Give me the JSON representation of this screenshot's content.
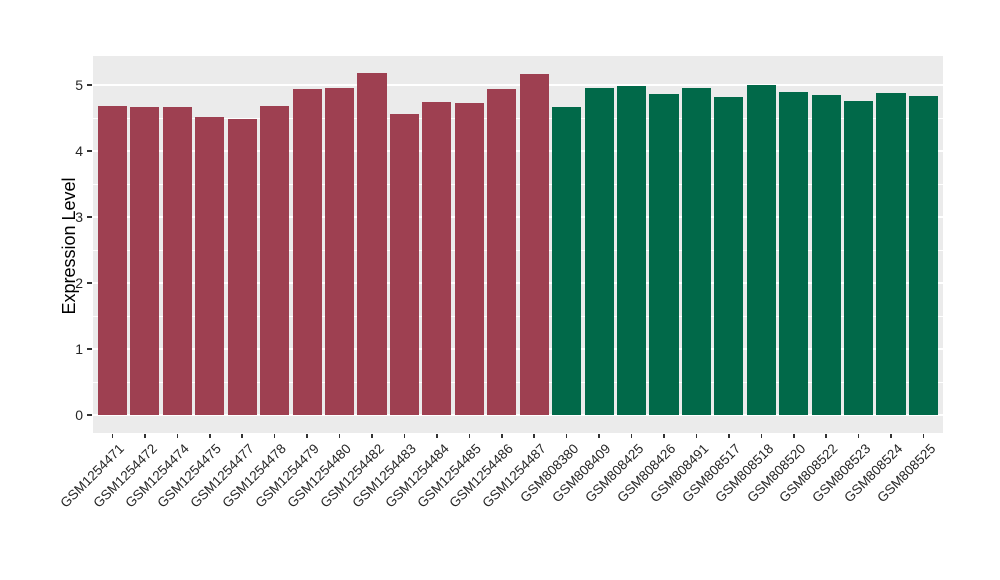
{
  "chart_data": {
    "type": "bar",
    "title": "",
    "ylabel": "Expression Level",
    "xlabel": "",
    "categories": [
      "GSM1254471",
      "GSM1254472",
      "GSM1254474",
      "GSM1254475",
      "GSM1254477",
      "GSM1254478",
      "GSM1254479",
      "GSM1254480",
      "GSM1254482",
      "GSM1254483",
      "GSM1254484",
      "GSM1254485",
      "GSM1254486",
      "GSM1254487",
      "GSM808380",
      "GSM808409",
      "GSM808425",
      "GSM808426",
      "GSM808491",
      "GSM808517",
      "GSM808518",
      "GSM808520",
      "GSM808522",
      "GSM808523",
      "GSM808524",
      "GSM808525"
    ],
    "values": [
      4.68,
      4.67,
      4.67,
      4.51,
      4.48,
      4.69,
      4.94,
      4.95,
      5.18,
      4.56,
      4.74,
      4.73,
      4.94,
      5.17,
      4.66,
      4.95,
      4.99,
      4.86,
      4.95,
      4.82,
      5.0,
      4.9,
      4.85,
      4.76,
      4.88,
      4.84
    ],
    "groups": [
      "group1",
      "group1",
      "group1",
      "group1",
      "group1",
      "group1",
      "group1",
      "group1",
      "group1",
      "group1",
      "group1",
      "group1",
      "group1",
      "group1",
      "group2",
      "group2",
      "group2",
      "group2",
      "group2",
      "group2",
      "group2",
      "group2",
      "group2",
      "group2",
      "group2",
      "group2"
    ],
    "group_colors": {
      "group1": "#9E4051",
      "group2": "#016949"
    },
    "yticks": [
      0,
      1,
      2,
      3,
      4,
      5
    ],
    "minor_gridlines": [
      0.5,
      1.5,
      2.5,
      3.5,
      4.5
    ],
    "ylim": [
      -0.27,
      5.44
    ],
    "grid": true,
    "legend_position": "none",
    "panel_bg": "#EBEBEB",
    "grid_color": "#FFFFFF",
    "bar_width_fraction": 0.9,
    "x_label_rotation_deg": 45
  }
}
